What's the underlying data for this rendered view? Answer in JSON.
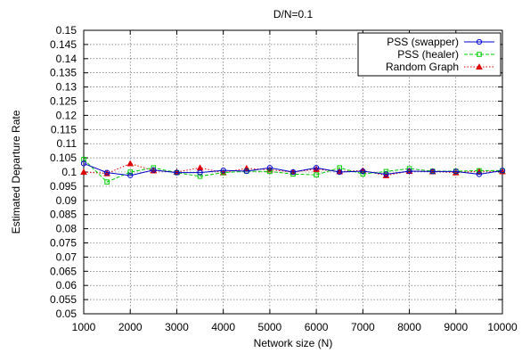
{
  "chart_data": {
    "type": "line",
    "title": "D/N=0.1",
    "xlabel": "Network size (N)",
    "ylabel": "Estimated Departure Rate",
    "xlim": [
      1000,
      10000
    ],
    "ylim": [
      0.05,
      0.15
    ],
    "x_ticks": [
      1000,
      2000,
      3000,
      4000,
      5000,
      6000,
      7000,
      8000,
      9000,
      10000
    ],
    "y_ticks": [
      0.05,
      0.055,
      0.06,
      0.065,
      0.07,
      0.075,
      0.08,
      0.085,
      0.09,
      0.095,
      0.1,
      0.105,
      0.11,
      0.115,
      0.12,
      0.125,
      0.13,
      0.135,
      0.14,
      0.145,
      0.15
    ],
    "grid": true,
    "legend_position": "top-right",
    "x": [
      1000,
      1500,
      2000,
      2500,
      3000,
      3500,
      4000,
      4500,
      5000,
      5500,
      6000,
      6500,
      7000,
      7500,
      8000,
      8500,
      9000,
      9500,
      10000
    ],
    "series": [
      {
        "name": "PSS (swapper)",
        "color": "#0000cc",
        "marker": "circle",
        "dash": "solid",
        "values": [
          0.103,
          0.0998,
          0.0988,
          0.1007,
          0.0998,
          0.0998,
          0.1006,
          0.1003,
          0.1015,
          0.1,
          0.1015,
          0.1,
          0.1003,
          0.0992,
          0.1003,
          0.1002,
          0.1002,
          0.0992,
          0.1005
        ]
      },
      {
        "name": "PSS (healer)",
        "color": "#00cc00",
        "marker": "square",
        "dash": "dash",
        "values": [
          0.1045,
          0.0965,
          0.1,
          0.1015,
          0.0998,
          0.0985,
          0.0998,
          0.1003,
          0.1002,
          0.0993,
          0.099,
          0.1015,
          0.0993,
          0.1002,
          0.1012,
          0.1003,
          0.1003,
          0.1005,
          0.1005
        ]
      },
      {
        "name": "Random Graph",
        "color": "#dd0000",
        "marker": "triangle",
        "dash": "dot",
        "values": [
          0.1,
          0.0995,
          0.103,
          0.1005,
          0.1,
          0.1015,
          0.0998,
          0.1013,
          0.1008,
          0.1,
          0.101,
          0.1002,
          0.1005,
          0.0988,
          0.1003,
          0.1002,
          0.0998,
          0.1003,
          0.1002
        ]
      }
    ]
  }
}
